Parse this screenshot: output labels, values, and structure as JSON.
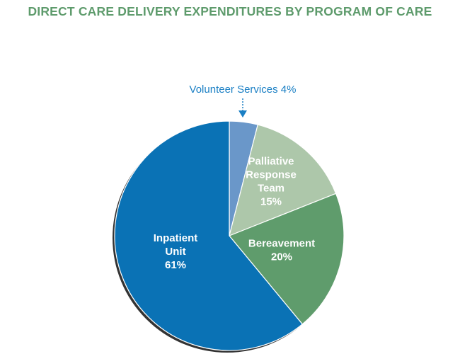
{
  "chart_data": {
    "type": "pie",
    "title": "DIRECT CARE DELIVERY EXPENDITURES BY PROGRAM OF CARE",
    "start_angle": "12 o'clock",
    "direction": "clockwise",
    "slices": [
      {
        "name": "Volunteer Services",
        "value": 4,
        "label_lines": [
          "Volunteer Services 4%"
        ],
        "color": "#6a97c9",
        "label_position": "callout"
      },
      {
        "name": "Palliative Response Team",
        "value": 15,
        "label_lines": [
          "Palliative",
          "Response",
          "Team",
          "15%"
        ],
        "color": "#adc7aa"
      },
      {
        "name": "Bereavement",
        "value": 20,
        "label_lines": [
          "Bereavement",
          "20%"
        ],
        "color": "#5f9c6c"
      },
      {
        "name": "Inpatient Unit",
        "value": 61,
        "label_lines": [
          "Inpatient",
          "Unit",
          "61%"
        ],
        "color": "#0a72b5"
      }
    ]
  }
}
